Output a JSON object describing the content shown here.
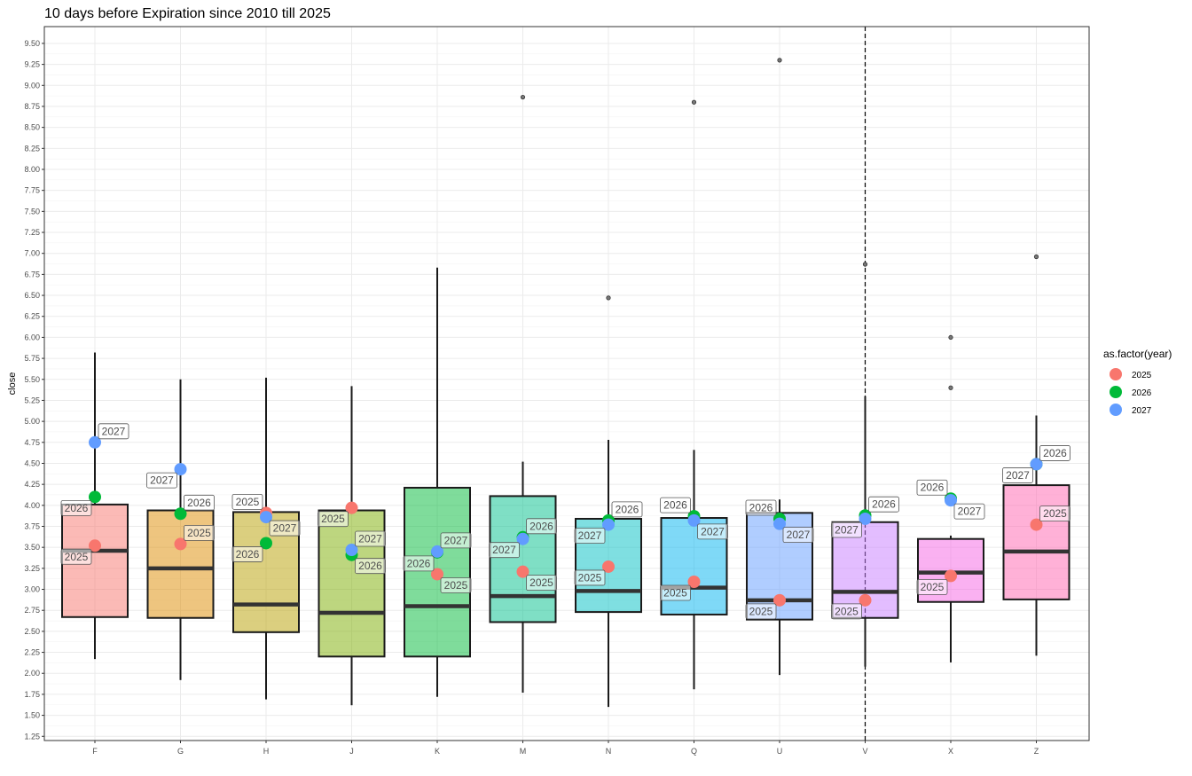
{
  "chart_data": {
    "type": "boxplot",
    "title": "10 days before Expiration since 2010 till 2025",
    "xlabel": "",
    "ylabel": "close",
    "ylim": [
      1.2,
      9.7
    ],
    "y_ticks": [
      1.25,
      1.5,
      1.75,
      2.0,
      2.25,
      2.5,
      2.75,
      3.0,
      3.25,
      3.5,
      3.75,
      4.0,
      4.25,
      4.5,
      4.75,
      5.0,
      5.25,
      5.5,
      5.75,
      6.0,
      6.25,
      6.5,
      6.75,
      7.0,
      7.25,
      7.5,
      7.75,
      8.0,
      8.25,
      8.5,
      8.75,
      9.0,
      9.25,
      9.5
    ],
    "grid": true,
    "vline_category": "V",
    "legend": {
      "title": "as.factor(year)",
      "placement": "right",
      "entries": [
        {
          "name": "2025",
          "color": "#F8766D"
        },
        {
          "name": "2026",
          "color": "#00BA38"
        },
        {
          "name": "2027",
          "color": "#619CFF"
        }
      ]
    },
    "categories": [
      {
        "name": "F",
        "color": "#F8766D",
        "whisker_low": 2.17,
        "q1": 2.67,
        "median": 3.46,
        "q3": 4.01,
        "whisker_high": 5.82,
        "outliers": [],
        "points": [
          {
            "year": "2025",
            "value": 3.52,
            "label_side": "left-below"
          },
          {
            "year": "2026",
            "value": 4.1,
            "label_side": "left-below"
          },
          {
            "year": "2027",
            "value": 4.75,
            "label_side": "right-above"
          }
        ]
      },
      {
        "name": "G",
        "color": "#DE8C00",
        "whisker_low": 1.92,
        "q1": 2.66,
        "median": 3.25,
        "q3": 3.94,
        "whisker_high": 5.5,
        "outliers": [],
        "points": [
          {
            "year": "2025",
            "value": 3.54,
            "label_side": "right-above"
          },
          {
            "year": "2026",
            "value": 3.9,
            "label_side": "right-above"
          },
          {
            "year": "2027",
            "value": 4.43,
            "label_side": "left-below"
          }
        ]
      },
      {
        "name": "H",
        "color": "#B79F00",
        "whisker_low": 1.69,
        "q1": 2.49,
        "median": 2.82,
        "q3": 3.92,
        "whisker_high": 5.52,
        "outliers": [],
        "points": [
          {
            "year": "2025",
            "value": 3.91,
            "label_side": "left-above"
          },
          {
            "year": "2026",
            "value": 3.55,
            "label_side": "left-below"
          },
          {
            "year": "2027",
            "value": 3.86,
            "label_side": "right-below"
          }
        ]
      },
      {
        "name": "J",
        "color": "#7CAE00",
        "whisker_low": 1.62,
        "q1": 2.2,
        "median": 2.72,
        "q3": 3.94,
        "whisker_high": 5.42,
        "outliers": [],
        "points": [
          {
            "year": "2025",
            "value": 3.97,
            "label_side": "left-below"
          },
          {
            "year": "2026",
            "value": 3.41,
            "label_side": "right-below"
          },
          {
            "year": "2027",
            "value": 3.47,
            "label_side": "right-above"
          }
        ]
      },
      {
        "name": "K",
        "color": "#00BA38",
        "whisker_low": 1.72,
        "q1": 2.2,
        "median": 2.8,
        "q3": 4.21,
        "whisker_high": 6.83,
        "outliers": [],
        "points": [
          {
            "year": "2025",
            "value": 3.18,
            "label_side": "right-below"
          },
          {
            "year": "2026",
            "value": 3.44,
            "label_side": "left-below"
          },
          {
            "year": "2027",
            "value": 3.45,
            "label_side": "right-above"
          }
        ]
      },
      {
        "name": "M",
        "color": "#00C08B",
        "whisker_low": 1.77,
        "q1": 2.61,
        "median": 2.92,
        "q3": 4.11,
        "whisker_high": 4.52,
        "outliers": [
          8.86
        ],
        "points": [
          {
            "year": "2025",
            "value": 3.21,
            "label_side": "right-below"
          },
          {
            "year": "2026",
            "value": 3.62,
            "label_side": "right-above"
          },
          {
            "year": "2027",
            "value": 3.6,
            "label_side": "left-below"
          }
        ]
      },
      {
        "name": "N",
        "color": "#00BFC4",
        "whisker_low": 1.6,
        "q1": 2.73,
        "median": 2.98,
        "q3": 3.84,
        "whisker_high": 4.78,
        "outliers": [
          6.47
        ],
        "points": [
          {
            "year": "2025",
            "value": 3.27,
            "label_side": "left-below"
          },
          {
            "year": "2026",
            "value": 3.82,
            "label_side": "right-above"
          },
          {
            "year": "2027",
            "value": 3.77,
            "label_side": "left-below"
          }
        ]
      },
      {
        "name": "Q",
        "color": "#00B4F0",
        "whisker_low": 1.81,
        "q1": 2.7,
        "median": 3.02,
        "q3": 3.85,
        "whisker_high": 4.66,
        "outliers": [
          8.8
        ],
        "points": [
          {
            "year": "2025",
            "value": 3.09,
            "label_side": "left-below"
          },
          {
            "year": "2026",
            "value": 3.87,
            "label_side": "left-above"
          },
          {
            "year": "2027",
            "value": 3.82,
            "label_side": "right-below"
          }
        ]
      },
      {
        "name": "U",
        "color": "#619CFF",
        "whisker_low": 1.98,
        "q1": 2.64,
        "median": 2.87,
        "q3": 3.91,
        "whisker_high": 4.07,
        "outliers": [
          9.3
        ],
        "points": [
          {
            "year": "2025",
            "value": 2.87,
            "label_side": "left-below"
          },
          {
            "year": "2026",
            "value": 3.84,
            "label_side": "left-above"
          },
          {
            "year": "2027",
            "value": 3.78,
            "label_side": "right-below"
          }
        ]
      },
      {
        "name": "V",
        "color": "#C77CFF",
        "whisker_low": 2.08,
        "q1": 2.66,
        "median": 2.97,
        "q3": 3.8,
        "whisker_high": 5.3,
        "outliers": [
          6.87
        ],
        "points": [
          {
            "year": "2025",
            "value": 2.87,
            "label_side": "left-below"
          },
          {
            "year": "2026",
            "value": 3.88,
            "label_side": "right-above"
          },
          {
            "year": "2027",
            "value": 3.84,
            "label_side": "left-below"
          }
        ]
      },
      {
        "name": "X",
        "color": "#F564E3",
        "whisker_low": 2.13,
        "q1": 2.85,
        "median": 3.2,
        "q3": 3.6,
        "whisker_high": 3.64,
        "outliers": [
          6.0,
          5.4
        ],
        "points": [
          {
            "year": "2025",
            "value": 3.16,
            "label_side": "left-below"
          },
          {
            "year": "2026",
            "value": 4.08,
            "label_side": "left-above"
          },
          {
            "year": "2027",
            "value": 4.06,
            "label_side": "right-below"
          }
        ]
      },
      {
        "name": "Z",
        "color": "#FF64B0",
        "whisker_low": 2.21,
        "q1": 2.88,
        "median": 3.45,
        "q3": 4.24,
        "whisker_high": 5.07,
        "outliers": [
          6.96
        ],
        "points": [
          {
            "year": "2025",
            "value": 3.77,
            "label_side": "right-above"
          },
          {
            "year": "2026",
            "value": 4.49,
            "label_side": "right-above"
          },
          {
            "year": "2027",
            "value": 4.49,
            "label_side": "left-below"
          }
        ]
      }
    ]
  }
}
